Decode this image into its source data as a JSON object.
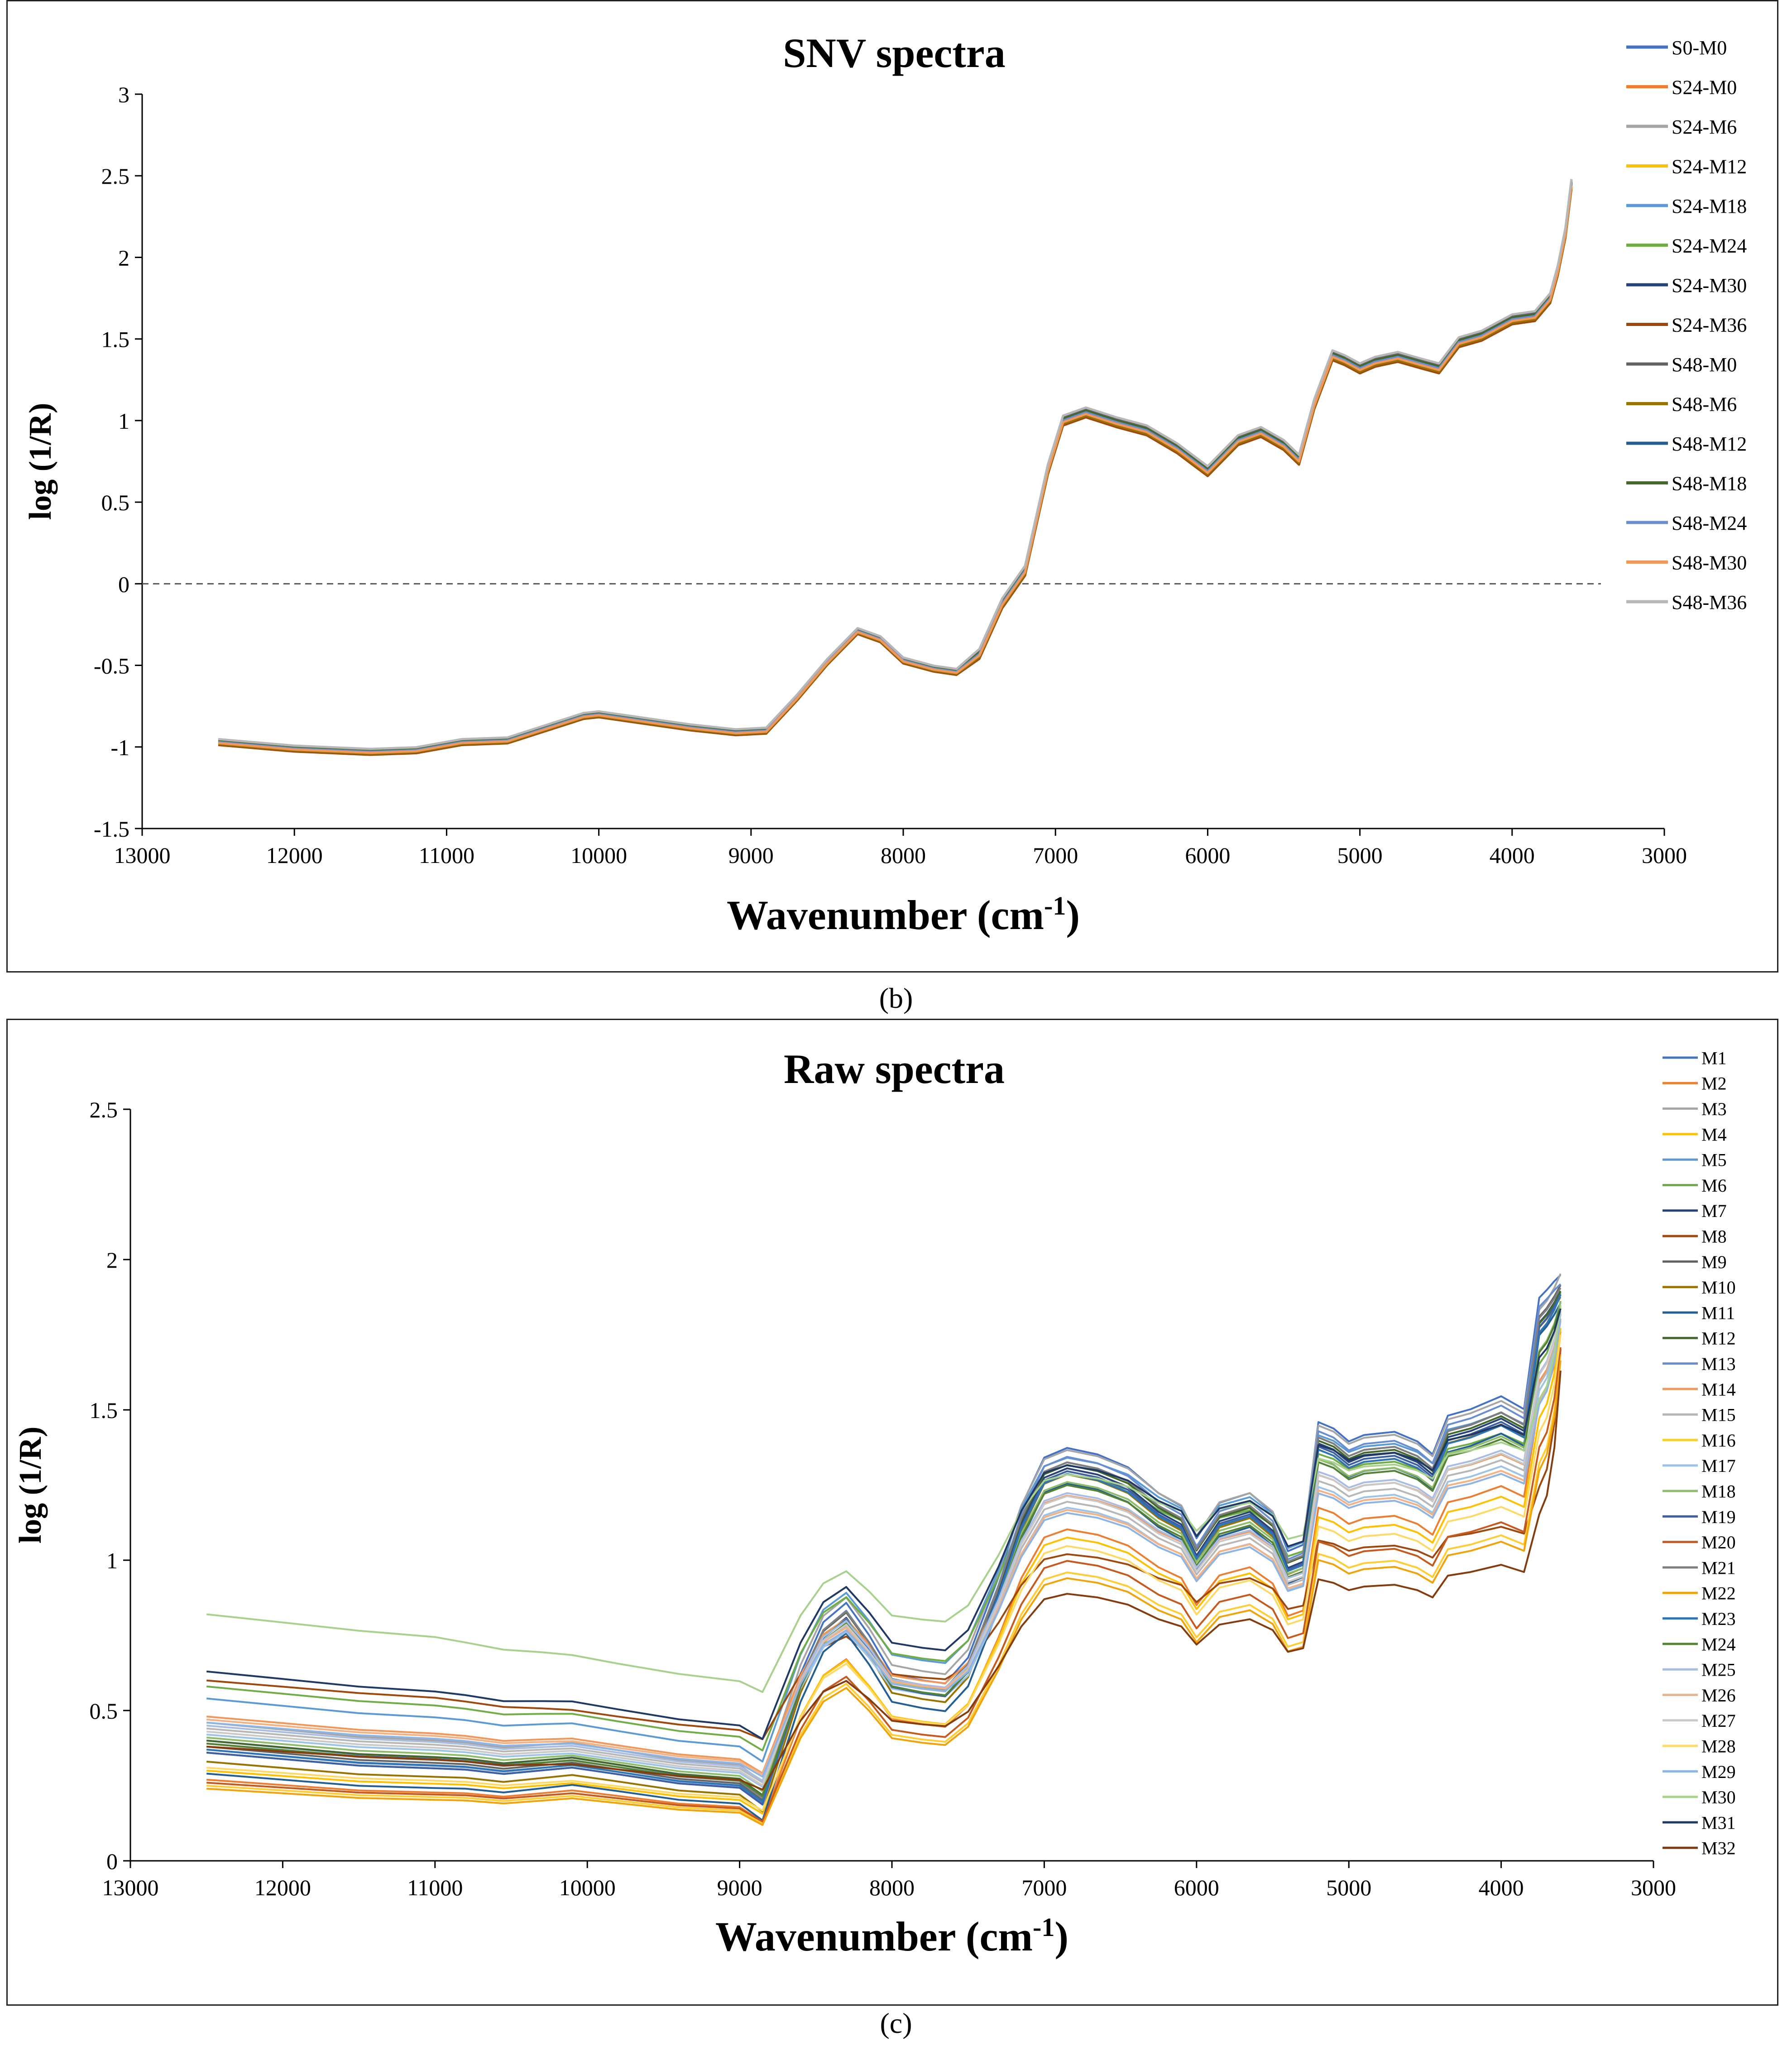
{
  "figure": {
    "caption_b": "(b)",
    "caption_c": "(c)"
  },
  "chart_data": [
    {
      "type": "line",
      "title": "SNV spectra",
      "xlabel": "Wavenumber (cm",
      "xlabel_sup": "-1",
      "xlabel_end": ")",
      "ylabel": "log (1/R)",
      "xlim": [
        13000,
        3000
      ],
      "ylim": [
        -1.5,
        3
      ],
      "xticks": [
        13000,
        12000,
        11000,
        10000,
        9000,
        8000,
        7000,
        6000,
        5000,
        4000,
        3000
      ],
      "yticks": [
        -1.5,
        -1,
        -0.5,
        0,
        0.5,
        1,
        1.5,
        2,
        2.5,
        3
      ],
      "ytick_labels": [
        "-1.5",
        "-1",
        "-0.5",
        "0",
        "0.5",
        "1",
        "1.5",
        "2",
        "2.5",
        "3"
      ],
      "reference_line": {
        "y": 0,
        "style": "dashed"
      },
      "legend_position": "right",
      "x": [
        12500,
        12000,
        11500,
        11200,
        10900,
        10600,
        10300,
        10100,
        10000,
        9700,
        9400,
        9100,
        8900,
        8700,
        8500,
        8300,
        8150,
        8000,
        7800,
        7650,
        7500,
        7350,
        7200,
        7050,
        6950,
        6800,
        6600,
        6400,
        6200,
        6000,
        5800,
        5650,
        5500,
        5400,
        5300,
        5180,
        5100,
        5000,
        4900,
        4750,
        4600,
        4480,
        4350,
        4200,
        4000,
        3850,
        3750,
        3700,
        3650,
        3610
      ],
      "base_values": [
        -0.97,
        -1.01,
        -1.03,
        -1.02,
        -0.97,
        -0.96,
        -0.87,
        -0.81,
        -0.8,
        -0.84,
        -0.88,
        -0.91,
        -0.9,
        -0.7,
        -0.48,
        -0.29,
        -0.34,
        -0.47,
        -0.52,
        -0.54,
        -0.43,
        -0.12,
        0.08,
        0.7,
        1.0,
        1.05,
        0.99,
        0.94,
        0.83,
        0.69,
        0.88,
        0.93,
        0.85,
        0.76,
        1.1,
        1.4,
        1.37,
        1.32,
        1.36,
        1.39,
        1.35,
        1.32,
        1.48,
        1.52,
        1.62,
        1.64,
        1.75,
        1.92,
        2.15,
        2.45
      ],
      "series": [
        {
          "name": "S0-M0",
          "color": "#4472C4",
          "offset": 0.0
        },
        {
          "name": "S24-M0",
          "color": "#ED7D31",
          "offset": -0.02
        },
        {
          "name": "S24-M6",
          "color": "#A5A5A5",
          "offset": 0.01
        },
        {
          "name": "S24-M12",
          "color": "#FFC000",
          "offset": -0.01
        },
        {
          "name": "S24-M18",
          "color": "#5B9BD5",
          "offset": 0.0
        },
        {
          "name": "S24-M24",
          "color": "#70AD47",
          "offset": 0.01
        },
        {
          "name": "S24-M30",
          "color": "#264478",
          "offset": -0.01
        },
        {
          "name": "S24-M36",
          "color": "#9E480E",
          "offset": -0.03
        },
        {
          "name": "S48-M0",
          "color": "#636363",
          "offset": 0.02
        },
        {
          "name": "S48-M6",
          "color": "#997300",
          "offset": -0.02
        },
        {
          "name": "S48-M12",
          "color": "#255E91",
          "offset": 0.0
        },
        {
          "name": "S48-M18",
          "color": "#43682B",
          "offset": 0.01
        },
        {
          "name": "S48-M24",
          "color": "#698ED0",
          "offset": 0.0
        },
        {
          "name": "S48-M30",
          "color": "#F1975A",
          "offset": -0.01
        },
        {
          "name": "S48-M36",
          "color": "#B7B7B7",
          "offset": 0.03
        }
      ]
    },
    {
      "type": "line",
      "title": "Raw spectra",
      "xlabel": "Wavenumber (cm",
      "xlabel_sup": "-1",
      "xlabel_end": ")",
      "ylabel": "log (1/R)",
      "xlim": [
        13000,
        3000
      ],
      "ylim": [
        0,
        2.5
      ],
      "xticks": [
        13000,
        12000,
        11000,
        10000,
        9000,
        8000,
        7000,
        6000,
        5000,
        4000,
        3000
      ],
      "yticks": [
        0,
        0.5,
        1,
        1.5,
        2,
        2.5
      ],
      "ytick_labels": [
        "0",
        "0.5",
        "1",
        "1.5",
        "2",
        "2.5"
      ],
      "legend_position": "right",
      "x": [
        12500,
        12000,
        11500,
        11000,
        10800,
        10550,
        10300,
        10100,
        9800,
        9400,
        9000,
        8850,
        8600,
        8450,
        8300,
        8150,
        8000,
        7800,
        7650,
        7500,
        7300,
        7150,
        7000,
        6850,
        6650,
        6450,
        6250,
        6100,
        6000,
        5850,
        5650,
        5500,
        5400,
        5300,
        5200,
        5100,
        5000,
        4900,
        4700,
        4550,
        4450,
        4350,
        4200,
        4000,
        3850,
        3750,
        3700,
        3650,
        3610
      ],
      "series": [
        {
          "name": "M1",
          "color": "#4472C4",
          "lo": 0.4,
          "hi": 1.43,
          "top": 1.95
        },
        {
          "name": "M2",
          "color": "#ED7D31",
          "lo": 0.27,
          "hi": 1.15,
          "top": 1.78
        },
        {
          "name": "M3",
          "color": "#A5A5A5",
          "lo": 0.46,
          "hi": 1.42,
          "top": 1.96
        },
        {
          "name": "M4",
          "color": "#FFC000",
          "lo": 0.3,
          "hi": 1.12,
          "top": 1.8
        },
        {
          "name": "M5",
          "color": "#5B9BD5",
          "lo": 0.54,
          "hi": 1.39,
          "top": 1.9
        },
        {
          "name": "M6",
          "color": "#70AD47",
          "lo": 0.58,
          "hi": 1.33,
          "top": 1.88
        },
        {
          "name": "M7",
          "color": "#264478",
          "lo": 0.36,
          "hi": 1.36,
          "top": 1.9
        },
        {
          "name": "M8",
          "color": "#9E480E",
          "lo": 0.6,
          "hi": 1.05,
          "top": 1.75
        },
        {
          "name": "M9",
          "color": "#636363",
          "lo": 0.38,
          "hi": 1.38,
          "top": 1.92
        },
        {
          "name": "M10",
          "color": "#997300",
          "lo": 0.33,
          "hi": 1.34,
          "top": 1.88
        },
        {
          "name": "M11",
          "color": "#255E91",
          "lo": 0.29,
          "hi": 1.31,
          "top": 1.86
        },
        {
          "name": "M12",
          "color": "#43682B",
          "lo": 0.4,
          "hi": 1.37,
          "top": 1.9
        },
        {
          "name": "M13",
          "color": "#698ED0",
          "lo": 0.37,
          "hi": 1.4,
          "top": 1.92
        },
        {
          "name": "M14",
          "color": "#F1975A",
          "lo": 0.48,
          "hi": 1.26,
          "top": 1.84
        },
        {
          "name": "M15",
          "color": "#B7B7B7",
          "lo": 0.44,
          "hi": 1.24,
          "top": 1.85
        },
        {
          "name": "M16",
          "color": "#FFCD33",
          "lo": 0.25,
          "hi": 1.0,
          "top": 1.72
        },
        {
          "name": "M17",
          "color": "#9DC3E6",
          "lo": 0.42,
          "hi": 1.22,
          "top": 1.84
        },
        {
          "name": "M18",
          "color": "#8FBC6B",
          "lo": 0.41,
          "hi": 1.31,
          "top": 1.87
        },
        {
          "name": "M19",
          "color": "#3D5FA3",
          "lo": 0.36,
          "hi": 1.35,
          "top": 1.89
        },
        {
          "name": "M20",
          "color": "#C65A1E",
          "lo": 0.26,
          "hi": 1.04,
          "top": 1.74
        },
        {
          "name": "M21",
          "color": "#7F7F7F",
          "lo": 0.39,
          "hi": 1.38,
          "top": 1.91
        },
        {
          "name": "M22",
          "color": "#F0A30A",
          "lo": 0.24,
          "hi": 0.98,
          "top": 1.7
        },
        {
          "name": "M23",
          "color": "#2E75B6",
          "lo": 0.37,
          "hi": 1.34,
          "top": 1.89
        },
        {
          "name": "M24",
          "color": "#548235",
          "lo": 0.39,
          "hi": 1.3,
          "top": 1.86
        },
        {
          "name": "M25",
          "color": "#A9BCE3",
          "lo": 0.45,
          "hi": 1.27,
          "top": 1.86
        },
        {
          "name": "M26",
          "color": "#F4B183",
          "lo": 0.47,
          "hi": 1.21,
          "top": 1.82
        },
        {
          "name": "M27",
          "color": "#C9C9C9",
          "lo": 0.43,
          "hi": 1.26,
          "top": 1.86
        },
        {
          "name": "M28",
          "color": "#FFD966",
          "lo": 0.31,
          "hi": 1.09,
          "top": 1.78
        },
        {
          "name": "M29",
          "color": "#8EB4E3",
          "lo": 0.46,
          "hi": 1.2,
          "top": 1.83
        },
        {
          "name": "M30",
          "color": "#A9D18E",
          "lo": 0.82,
          "hi": 1.32,
          "top": 1.88
        },
        {
          "name": "M31",
          "color": "#1F3864",
          "lo": 0.63,
          "hi": 1.36,
          "top": 1.85
        },
        {
          "name": "M32",
          "color": "#843C0C",
          "lo": 0.38,
          "hi": 0.92,
          "top": 1.68
        }
      ]
    }
  ]
}
